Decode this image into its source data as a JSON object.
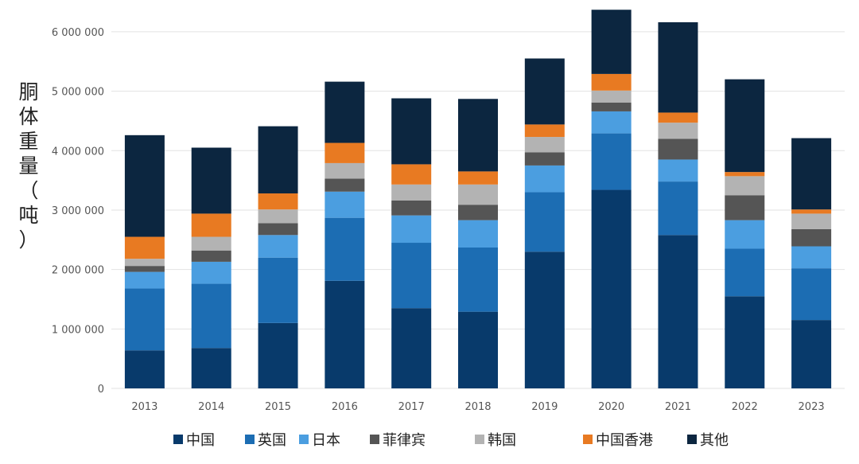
{
  "chart_data": {
    "type": "bar",
    "stacked": true,
    "ylabel": "胴体重量（吨）",
    "ylabel_chars": [
      "胴",
      "体",
      "重",
      "量",
      "（",
      "吨",
      "）"
    ],
    "ylim": [
      0,
      6400000
    ],
    "yticks": [
      0,
      1000000,
      2000000,
      3000000,
      4000000,
      5000000,
      6000000
    ],
    "ytick_labels": [
      "0",
      "1 000 000",
      "2 000 000",
      "3 000 000",
      "4 000 000",
      "5 000 000",
      "6 000 000"
    ],
    "categories": [
      "2013",
      "2014",
      "2015",
      "2016",
      "2017",
      "2018",
      "2019",
      "2020",
      "2021",
      "2022",
      "2023"
    ],
    "grid": true,
    "legend_position": "bottom",
    "series": [
      {
        "name": "中国",
        "color": "#083a6b",
        "values": [
          640000,
          680000,
          1100000,
          1810000,
          1350000,
          1290000,
          2300000,
          3340000,
          2580000,
          1550000,
          1150000
        ]
      },
      {
        "name": "英国",
        "color": "#1c6db3",
        "values": [
          1040000,
          1080000,
          1100000,
          1060000,
          1100000,
          1080000,
          1000000,
          950000,
          900000,
          800000,
          870000
        ]
      },
      {
        "name": "日本",
        "color": "#4b9ee0",
        "values": [
          280000,
          370000,
          380000,
          440000,
          460000,
          460000,
          450000,
          370000,
          370000,
          480000,
          370000
        ]
      },
      {
        "name": "菲律宾",
        "color": "#555555",
        "values": [
          100000,
          190000,
          200000,
          220000,
          250000,
          260000,
          220000,
          150000,
          350000,
          420000,
          290000
        ]
      },
      {
        "name": "韩国",
        "color": "#b3b3b3",
        "values": [
          120000,
          230000,
          230000,
          260000,
          270000,
          340000,
          260000,
          200000,
          270000,
          320000,
          260000
        ]
      },
      {
        "name": "中国香港",
        "color": "#e87a22",
        "values": [
          370000,
          390000,
          270000,
          340000,
          340000,
          220000,
          210000,
          280000,
          170000,
          70000,
          70000
        ]
      },
      {
        "name": "其他",
        "color": "#0c2640",
        "values": [
          1710000,
          1110000,
          1130000,
          1030000,
          1110000,
          1220000,
          1110000,
          1080000,
          1520000,
          1560000,
          1200000
        ]
      }
    ]
  }
}
